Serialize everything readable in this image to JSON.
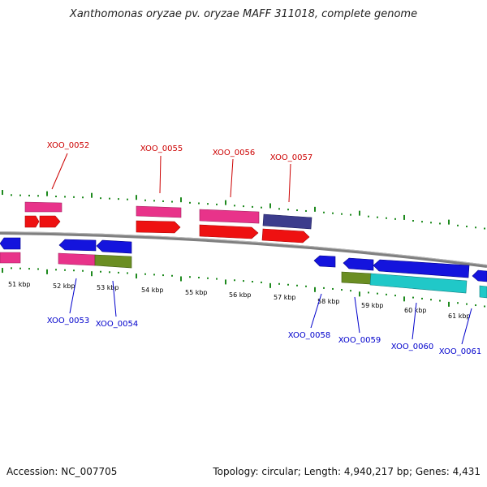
{
  "title": "Xanthomonas oryzae pv. oryzae MAFF 311018, complete genome",
  "footer": {
    "accession": "Accession: NC_007705",
    "summary": "Topology: circular; Length: 4,940,217 bp; Genes: 4,431"
  },
  "colors": {
    "backbone": "#888888",
    "ticks": "#1e8a1e",
    "upper_label": "#cc0000",
    "lower_label": "#0000cc",
    "callout": "#cc0000",
    "callout_lower": "#0000cc",
    "magenta": "#e8338a",
    "red": "#ee1111",
    "blue": "#1414dd",
    "olive": "#6b8e23",
    "navy": "#3c3c8c",
    "cyan": "#20c8c8"
  },
  "scale_labels": [
    "51 kbp",
    "52 kbp",
    "53 kbp",
    "54 kbp",
    "55 kbp",
    "56 kbp",
    "57 kbp",
    "58 kbp",
    "59 kbp",
    "60 kbp",
    "61 kbp"
  ],
  "upper_gene_labels": [
    "XOO_0052",
    "XOO_0055",
    "XOO_0056",
    "XOO_0057"
  ],
  "lower_gene_labels": [
    "XOO_0053",
    "XOO_0054",
    "XOO_0058",
    "XOO_0059",
    "XOO_0060",
    "XOO_0061"
  ]
}
